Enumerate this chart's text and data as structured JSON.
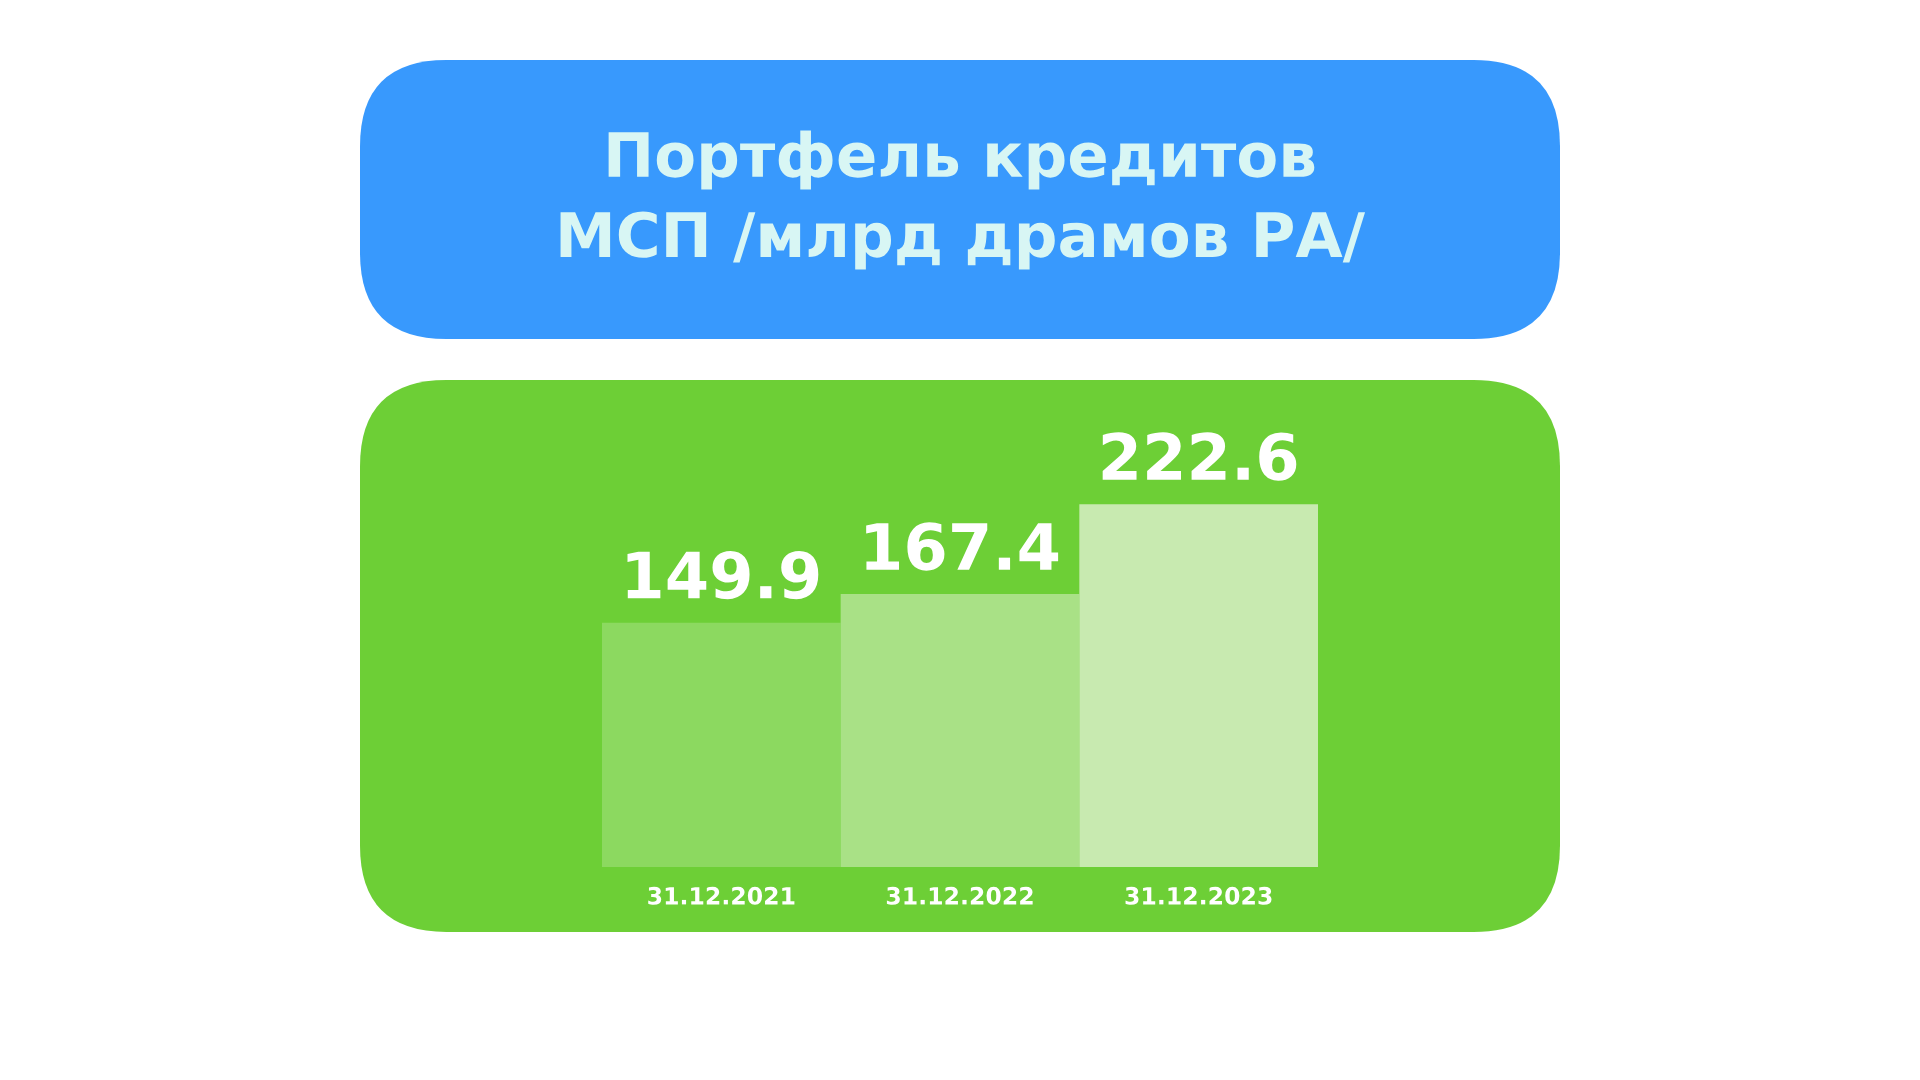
{
  "chart_data": {
    "type": "bar",
    "title": "Портфель кредитов\nМСП /млрд драмов РА/",
    "categories": [
      "31.12.2021",
      "31.12.2022",
      "31.12.2023"
    ],
    "values": [
      149.9,
      167.4,
      222.6
    ],
    "colors": [
      "#8cd960",
      "#a9e186",
      "#c8eab0"
    ],
    "data_labels": true,
    "grid": false,
    "legend": false
  }
}
